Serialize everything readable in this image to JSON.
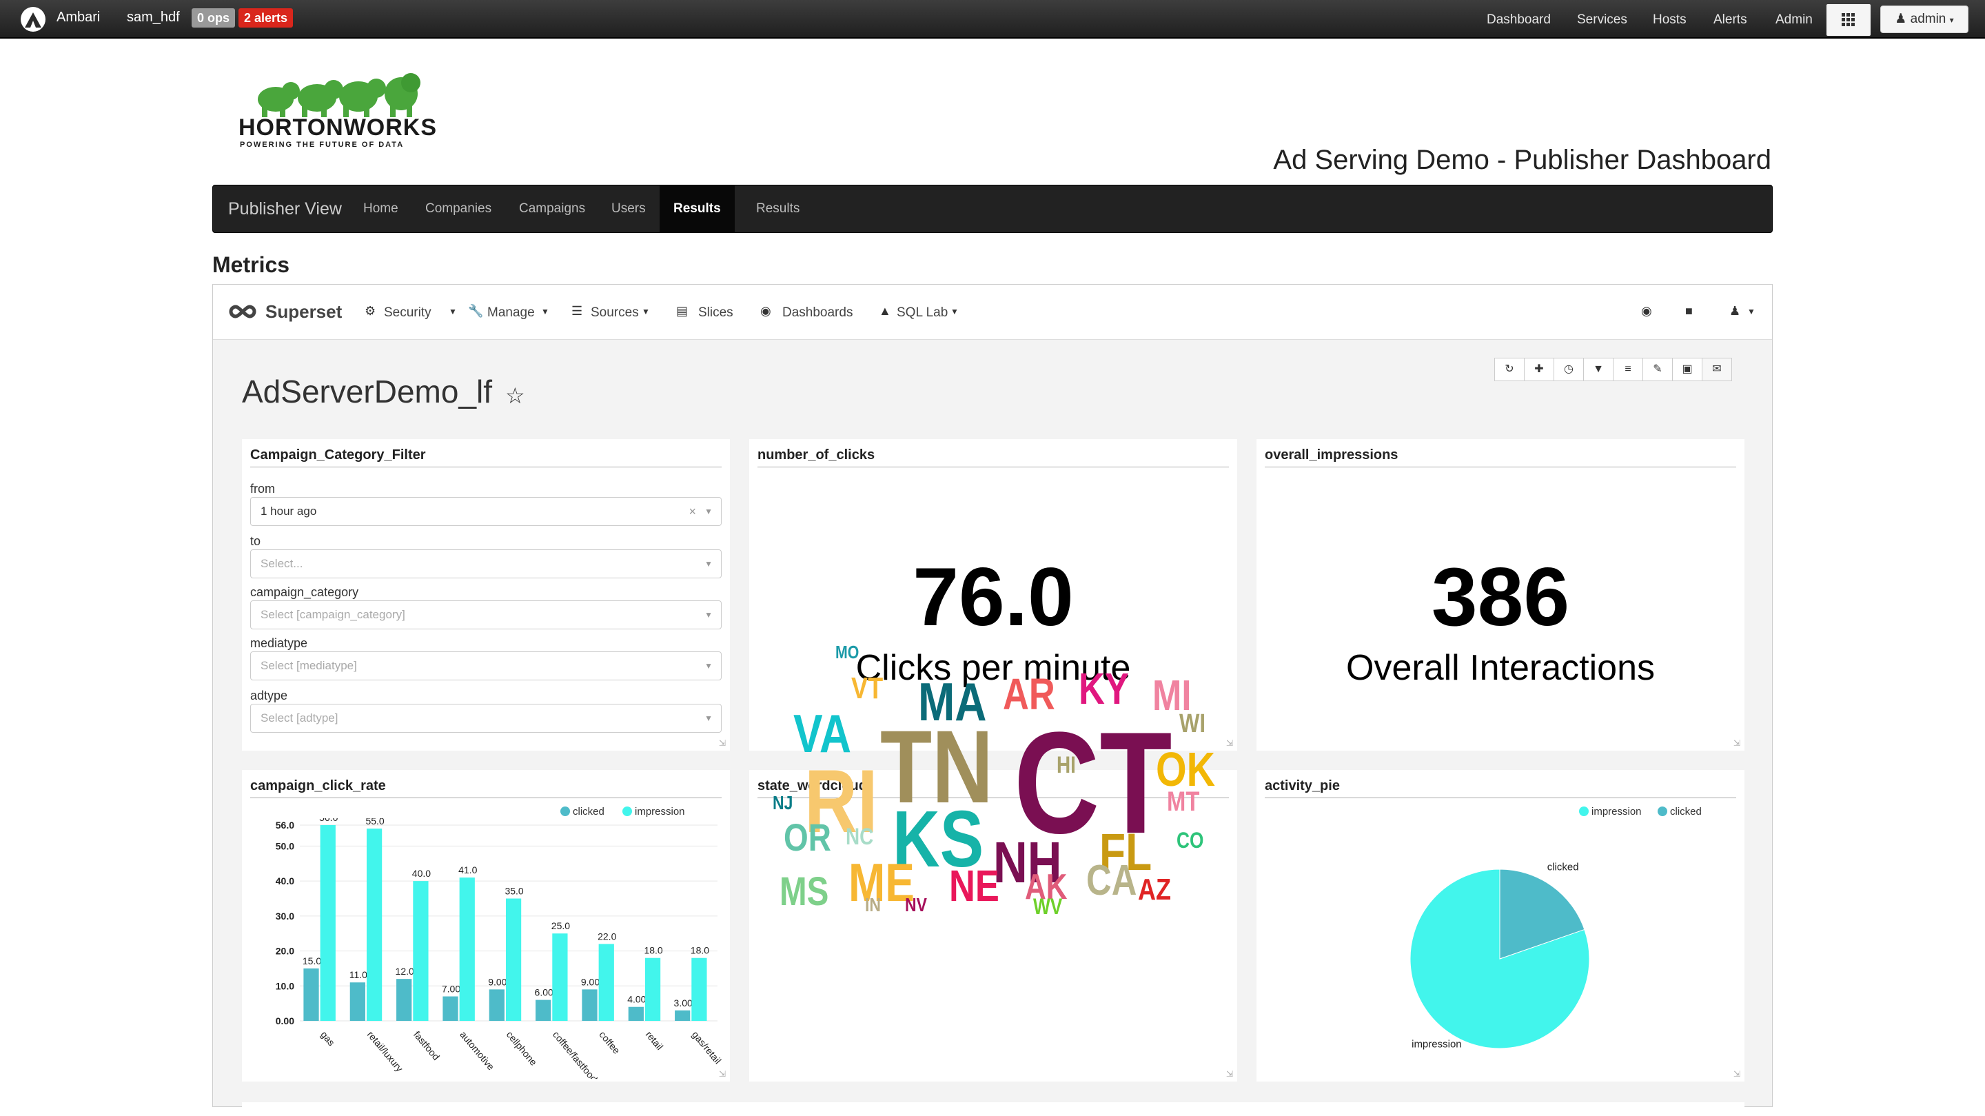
{
  "ambari": {
    "brand": "Ambari",
    "cluster": "sam_hdf",
    "ops_badge": "0 ops",
    "alerts_badge": "2 alerts",
    "nav": [
      "Dashboard",
      "Services",
      "Hosts",
      "Alerts",
      "Admin"
    ],
    "user": "admin"
  },
  "header": {
    "logo_text": "HORTONWORKS",
    "logo_tagline": "POWERING THE FUTURE OF DATA",
    "title": "Ad Serving Demo - Publisher Dashboard"
  },
  "publisher_nav": {
    "brand": "Publisher View",
    "items": [
      "Home",
      "Companies",
      "Campaigns",
      "Users",
      "Results",
      "Results"
    ],
    "active_index": 4
  },
  "section_title": "Metrics",
  "superset": {
    "brand": "Superset",
    "menu": [
      "Security",
      "Manage",
      "Sources",
      "Slices",
      "Dashboards",
      "SQL Lab"
    ],
    "dashboard_title": "AdServerDemo_lf"
  },
  "filter_panel": {
    "title": "Campaign_Category_Filter",
    "fields": [
      {
        "label": "from",
        "value": "1 hour ago",
        "placeholder": ""
      },
      {
        "label": "to",
        "value": "",
        "placeholder": "Select..."
      },
      {
        "label": "campaign_category",
        "value": "",
        "placeholder": "Select [campaign_category]"
      },
      {
        "label": "mediatype",
        "value": "",
        "placeholder": "Select [mediatype]"
      },
      {
        "label": "adtype",
        "value": "",
        "placeholder": "Select [adtype]"
      }
    ]
  },
  "clicks_panel": {
    "title": "number_of_clicks",
    "value": "76.0",
    "subtitle": "Clicks per minute"
  },
  "impressions_panel": {
    "title": "overall_impressions",
    "value": "386",
    "subtitle": "Overall Interactions"
  },
  "colors": {
    "clicked": "#4ebbc9",
    "impression": "#42f5ec",
    "ambari_bar": "#2b2b2b",
    "alerts": "#d9261c"
  },
  "bar_panel": {
    "title": "campaign_click_rate",
    "chart_data": {
      "type": "bar",
      "categories": [
        "gas",
        "retail/luxury",
        "fastfood",
        "automotive",
        "cellphone",
        "coffee/fastfood",
        "coffee",
        "retail",
        "gas/retail"
      ],
      "series": [
        {
          "name": "clicked",
          "values": [
            15.0,
            11.0,
            12.0,
            7.0,
            9.0,
            6.0,
            9.0,
            4.0,
            3.0
          ],
          "labels": [
            "15.0",
            "11.0",
            "12.0",
            "7.00",
            "9.00",
            "6.00",
            "9.00",
            "4.00",
            "3.00"
          ]
        },
        {
          "name": "impression",
          "values": [
            56.0,
            55.0,
            40.0,
            41.0,
            35.0,
            25.0,
            22.0,
            18.0,
            18.0
          ],
          "labels": [
            "56.0",
            "55.0",
            "40.0",
            "41.0",
            "35.0",
            "25.0",
            "22.0",
            "18.0",
            "18.0"
          ]
        }
      ],
      "yticks": [
        "0.00",
        "10.0",
        "20.0",
        "30.0",
        "40.0",
        "50.0",
        "56.0"
      ],
      "ytick_values": [
        0,
        10,
        20,
        30,
        40,
        50,
        56
      ],
      "ylim": [
        0,
        56
      ],
      "legend": "top-right"
    }
  },
  "wordcloud_panel": {
    "title": "state_wordcloud",
    "words": [
      {
        "text": "MO",
        "color": "#1b9aa8"
      },
      {
        "text": "VT",
        "color": "#f7b733"
      },
      {
        "text": "MA",
        "color": "#0b6b78"
      },
      {
        "text": "AR",
        "color": "#f05a5a"
      },
      {
        "text": "KY",
        "color": "#e0177f"
      },
      {
        "text": "MI",
        "color": "#f083a0"
      },
      {
        "text": "VA",
        "color": "#12c4cc"
      },
      {
        "text": "TN",
        "color": "#a08f5b"
      },
      {
        "text": "CT",
        "color": "#7a0f52"
      },
      {
        "text": "WI",
        "color": "#a8a26b"
      },
      {
        "text": "RI",
        "color": "#f7c86e"
      },
      {
        "text": "HI",
        "color": "#a8a26b"
      },
      {
        "text": "OK",
        "color": "#f2b705"
      },
      {
        "text": "NJ",
        "color": "#0b7d88"
      },
      {
        "text": "KS",
        "color": "#16b3a8"
      },
      {
        "text": "MT",
        "color": "#f083a0"
      },
      {
        "text": "OR",
        "color": "#61c4a8"
      },
      {
        "text": "NC",
        "color": "#a8dcc8"
      },
      {
        "text": "NH",
        "color": "#7a0f52"
      },
      {
        "text": "FL",
        "color": "#c99a12"
      },
      {
        "text": "CO",
        "color": "#2ec47a"
      },
      {
        "text": "ME",
        "color": "#f7b733"
      },
      {
        "text": "NE",
        "color": "#e9175a"
      },
      {
        "text": "AK",
        "color": "#e05c7a"
      },
      {
        "text": "CA",
        "color": "#b8b48a"
      },
      {
        "text": "MS",
        "color": "#7ed08a"
      },
      {
        "text": "AZ",
        "color": "#e02424"
      },
      {
        "text": "IN",
        "color": "#b8ac86"
      },
      {
        "text": "NV",
        "color": "#a60f5a"
      },
      {
        "text": "WV",
        "color": "#6ed02a"
      }
    ]
  },
  "pie_panel": {
    "title": "activity_pie",
    "chart_data": {
      "type": "pie",
      "labels": [
        "impression",
        "clicked"
      ],
      "values": [
        310,
        76
      ],
      "legend": "top-right"
    }
  }
}
